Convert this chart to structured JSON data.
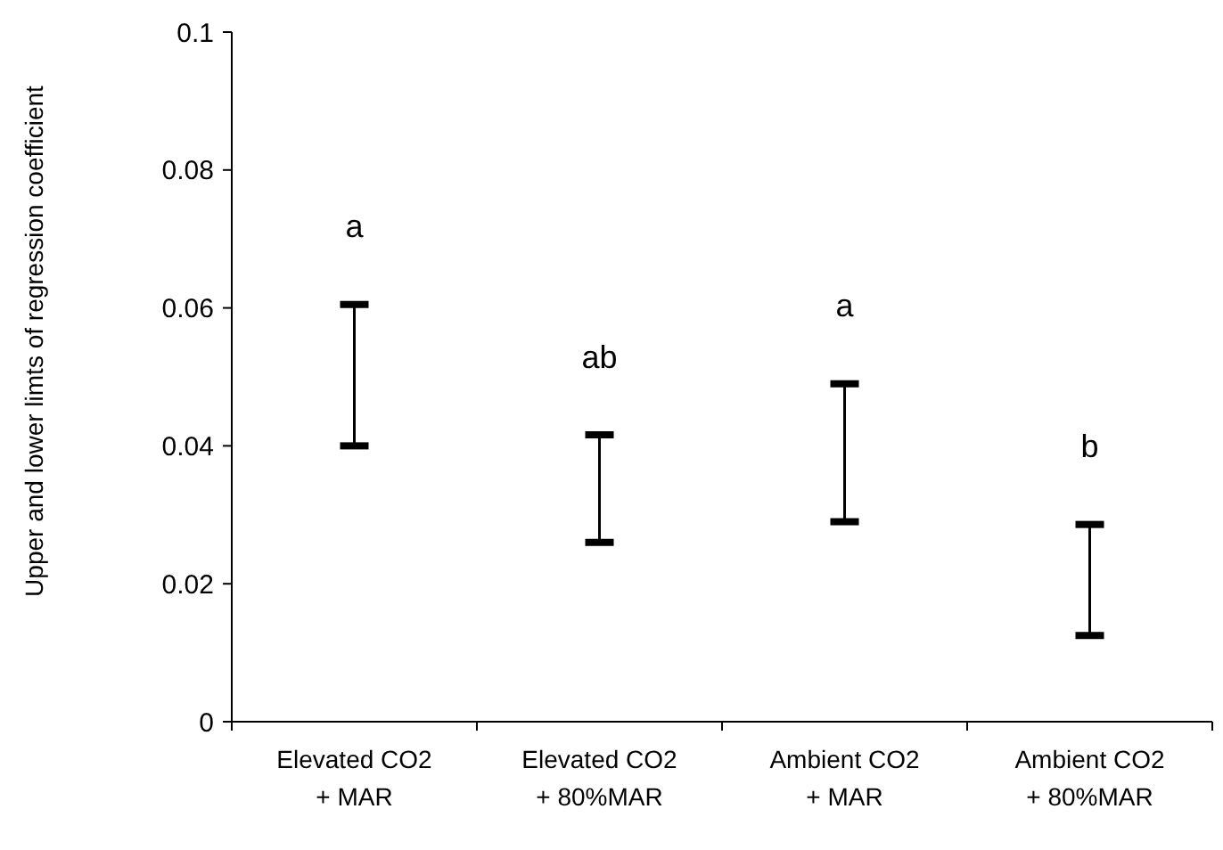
{
  "chart_data": {
    "type": "bar",
    "ylabel": "Upper and lower limts of regression coefficient",
    "categories": [
      "Elevated CO2 + MAR",
      "Elevated CO2 + 80%MAR",
      "Ambient CO2 + MAR",
      "Ambient CO2 + 80%MAR"
    ],
    "base": [
      0.04,
      0.026,
      0.029,
      0.0125
    ],
    "values": [
      0.0205,
      0.0156,
      0.02,
      0.0161
    ],
    "color": "#000000",
    "ylim": [
      0,
      0.1
    ],
    "yticks": [
      0,
      0.02,
      0.04,
      0.06,
      0.08,
      0.1
    ],
    "annotations": [
      "a",
      "ab",
      "a",
      "b"
    ]
  }
}
